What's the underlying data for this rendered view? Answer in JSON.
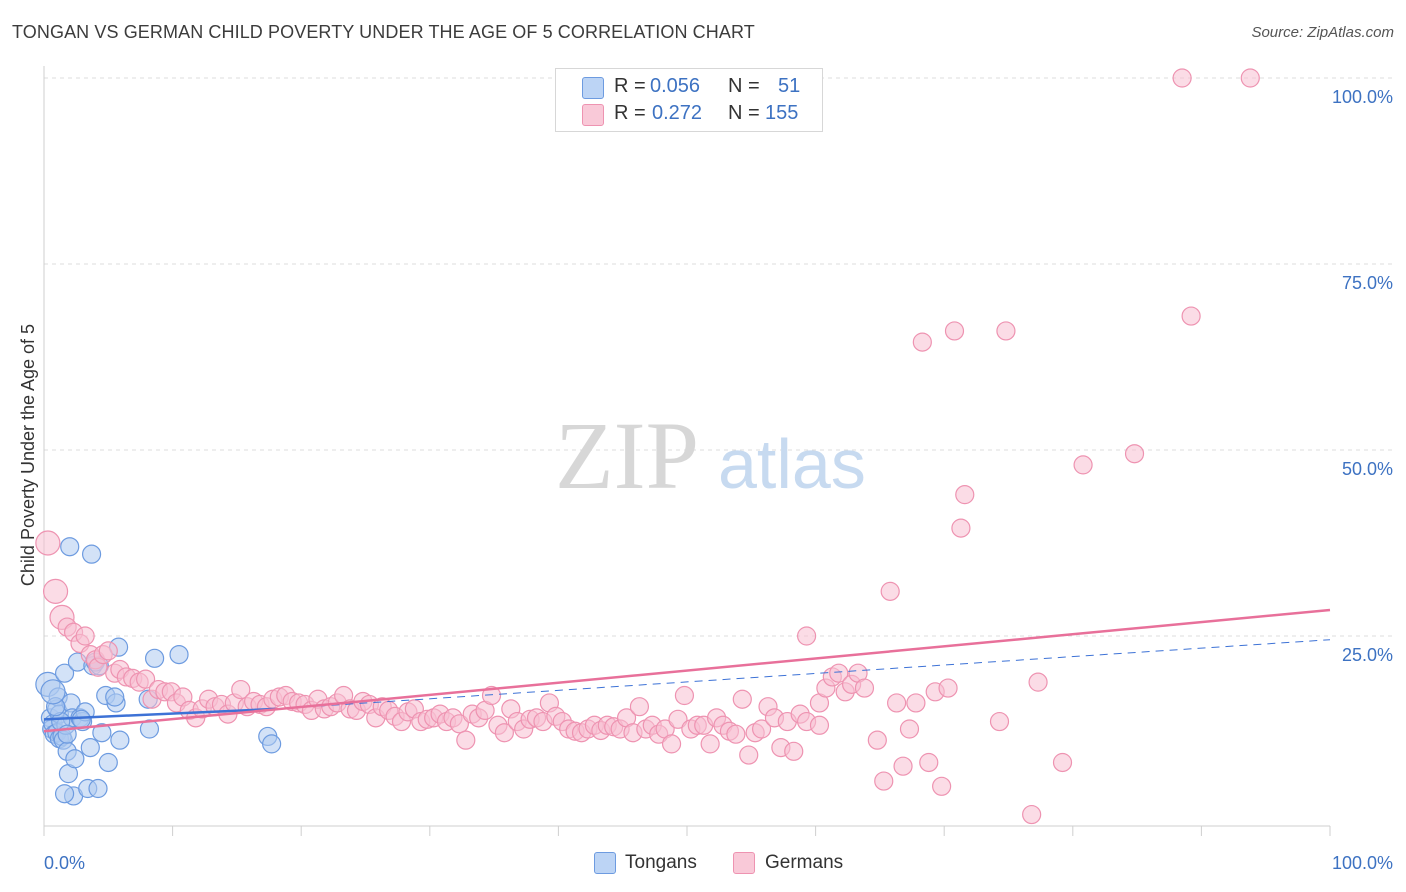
{
  "title": "TONGAN VS GERMAN CHILD POVERTY UNDER THE AGE OF 5 CORRELATION CHART",
  "source": "Source: ZipAtlas.com",
  "watermark": {
    "zip": "ZIP",
    "atlas": "atlas"
  },
  "legend": {
    "r_label": "R =",
    "n_label": "N =",
    "tongans": {
      "r": "0.056",
      "n": "51"
    },
    "germans": {
      "r": "0.272",
      "n": "155"
    }
  },
  "bottom_legend": {
    "tongans": "Tongans",
    "germans": "Germans"
  },
  "colors": {
    "tongans_fill": "#aecbf0",
    "tongans_stroke": "#6d9be0",
    "tongans_line": "#3d72d6",
    "germans_fill": "#f7bfd1",
    "germans_stroke": "#ee93b1",
    "germans_line": "#e8709a",
    "axis_text": "#3d72c2"
  },
  "chart_data": {
    "type": "scatter",
    "title": "TONGAN VS GERMAN CHILD POVERTY UNDER THE AGE OF 5 CORRELATION CHART",
    "xlabel": "",
    "ylabel": "Child Poverty Under the Age of 5",
    "xlim": [
      0,
      100
    ],
    "ylim": [
      0,
      100
    ],
    "x_tick_labels": [
      "0.0%",
      "100.0%"
    ],
    "y_tick_labels": [
      "100.0%",
      "75.0%",
      "50.0%",
      "25.0%"
    ],
    "y_ticks": [
      100,
      75,
      50,
      25
    ],
    "grid": true,
    "legend_position": "top-center",
    "series": [
      {
        "name": "Tongans",
        "points": [
          [
            0.3,
            18.5
          ],
          [
            0.5,
            14
          ],
          [
            0.6,
            12.5
          ],
          [
            0.7,
            13.2
          ],
          [
            0.8,
            11.8
          ],
          [
            1.0,
            15.2
          ],
          [
            1.0,
            12
          ],
          [
            1.1,
            16.8
          ],
          [
            1.2,
            14.5
          ],
          [
            1.2,
            11.2
          ],
          [
            1.4,
            11.5
          ],
          [
            1.5,
            11
          ],
          [
            1.6,
            20
          ],
          [
            1.7,
            13
          ],
          [
            1.8,
            9.5
          ],
          [
            1.9,
            6.5
          ],
          [
            2.0,
            37
          ],
          [
            2.1,
            16
          ],
          [
            2.2,
            14
          ],
          [
            2.3,
            3.5
          ],
          [
            2.4,
            8.5
          ],
          [
            2.6,
            21.5
          ],
          [
            2.8,
            14
          ],
          [
            3.0,
            13.5
          ],
          [
            3.2,
            14.8
          ],
          [
            3.4,
            4.5
          ],
          [
            3.6,
            10
          ],
          [
            3.8,
            21
          ],
          [
            4.0,
            21.5
          ],
          [
            4.2,
            4.5
          ],
          [
            4.5,
            12
          ],
          [
            4.8,
            17
          ],
          [
            5.0,
            8
          ],
          [
            5.6,
            16
          ],
          [
            5.8,
            23.5
          ],
          [
            5.9,
            11
          ],
          [
            8.2,
            12.5
          ],
          [
            8.6,
            22
          ],
          [
            10.5,
            22.5
          ],
          [
            17.4,
            11.5
          ],
          [
            17.7,
            10.5
          ],
          [
            1.6,
            3.8
          ],
          [
            1.3,
            13.5
          ],
          [
            0.9,
            15.5
          ],
          [
            1.8,
            11.8
          ],
          [
            3.7,
            36
          ],
          [
            4.3,
            21
          ],
          [
            8.1,
            16.5
          ],
          [
            2.9,
            13.8
          ],
          [
            5.5,
            16.8
          ],
          [
            0.7,
            17.5
          ]
        ]
      },
      {
        "name": "Germans",
        "points": [
          [
            0.3,
            37.5
          ],
          [
            0.9,
            31
          ],
          [
            1.4,
            27.5
          ],
          [
            1.8,
            26.2
          ],
          [
            2.3,
            25.5
          ],
          [
            2.8,
            24
          ],
          [
            3.2,
            25
          ],
          [
            3.6,
            22.5
          ],
          [
            4.0,
            21.8
          ],
          [
            4.2,
            20.8
          ],
          [
            4.6,
            22.5
          ],
          [
            5.0,
            23
          ],
          [
            5.5,
            20
          ],
          [
            5.9,
            20.5
          ],
          [
            6.4,
            19.5
          ],
          [
            6.9,
            19.3
          ],
          [
            7.4,
            18.8
          ],
          [
            7.9,
            19.2
          ],
          [
            8.4,
            16.5
          ],
          [
            8.9,
            17.8
          ],
          [
            9.4,
            17.5
          ],
          [
            9.9,
            17.5
          ],
          [
            10.3,
            16
          ],
          [
            10.8,
            16.8
          ],
          [
            11.3,
            15
          ],
          [
            11.8,
            14
          ],
          [
            12.3,
            15.2
          ],
          [
            12.8,
            16.5
          ],
          [
            13.3,
            15.5
          ],
          [
            13.8,
            15.8
          ],
          [
            14.3,
            14.5
          ],
          [
            14.8,
            16
          ],
          [
            15.3,
            17.8
          ],
          [
            15.8,
            15.5
          ],
          [
            16.3,
            16.2
          ],
          [
            16.8,
            15.8
          ],
          [
            17.3,
            15.5
          ],
          [
            17.8,
            16.5
          ],
          [
            18.3,
            16.8
          ],
          [
            18.8,
            17
          ],
          [
            19.3,
            16.2
          ],
          [
            19.8,
            16
          ],
          [
            20.3,
            15.8
          ],
          [
            20.8,
            15
          ],
          [
            21.3,
            16.5
          ],
          [
            21.8,
            15.2
          ],
          [
            22.3,
            15.5
          ],
          [
            22.8,
            16
          ],
          [
            23.3,
            17
          ],
          [
            23.8,
            15.2
          ],
          [
            24.3,
            15
          ],
          [
            24.8,
            16.2
          ],
          [
            25.3,
            15.8
          ],
          [
            25.8,
            14
          ],
          [
            26.3,
            15.5
          ],
          [
            26.8,
            15
          ],
          [
            27.3,
            14.2
          ],
          [
            27.8,
            13.5
          ],
          [
            28.3,
            14.8
          ],
          [
            28.8,
            15.2
          ],
          [
            29.3,
            13.5
          ],
          [
            29.8,
            13.8
          ],
          [
            30.3,
            14
          ],
          [
            30.8,
            14.5
          ],
          [
            31.3,
            13.5
          ],
          [
            31.8,
            14
          ],
          [
            32.3,
            13.2
          ],
          [
            32.8,
            11
          ],
          [
            33.3,
            14.5
          ],
          [
            33.8,
            14
          ],
          [
            34.3,
            15
          ],
          [
            34.8,
            17
          ],
          [
            35.3,
            13
          ],
          [
            35.8,
            12
          ],
          [
            36.3,
            15.2
          ],
          [
            36.8,
            13.5
          ],
          [
            37.3,
            12.5
          ],
          [
            37.8,
            13.8
          ],
          [
            38.3,
            14
          ],
          [
            38.8,
            13.5
          ],
          [
            39.3,
            16
          ],
          [
            39.8,
            14.2
          ],
          [
            40.3,
            13.5
          ],
          [
            40.8,
            12.5
          ],
          [
            41.3,
            12.2
          ],
          [
            41.8,
            12
          ],
          [
            42.3,
            12.5
          ],
          [
            42.8,
            13
          ],
          [
            43.3,
            12.3
          ],
          [
            43.8,
            13
          ],
          [
            44.3,
            12.8
          ],
          [
            44.8,
            12.5
          ],
          [
            45.3,
            14
          ],
          [
            45.8,
            12
          ],
          [
            46.3,
            15.5
          ],
          [
            46.8,
            12.5
          ],
          [
            47.3,
            13
          ],
          [
            47.8,
            11.8
          ],
          [
            48.3,
            12.5
          ],
          [
            48.8,
            10.5
          ],
          [
            49.3,
            13.8
          ],
          [
            49.8,
            17
          ],
          [
            50.3,
            12.5
          ],
          [
            50.8,
            13
          ],
          [
            51.3,
            13
          ],
          [
            51.8,
            10.5
          ],
          [
            52.3,
            14
          ],
          [
            52.8,
            13
          ],
          [
            53.3,
            12.2
          ],
          [
            53.8,
            11.8
          ],
          [
            54.3,
            16.5
          ],
          [
            54.8,
            9
          ],
          [
            55.3,
            12
          ],
          [
            55.8,
            12.5
          ],
          [
            56.3,
            15.5
          ],
          [
            56.8,
            14
          ],
          [
            57.3,
            10
          ],
          [
            57.8,
            13.5
          ],
          [
            58.3,
            9.5
          ],
          [
            58.8,
            14.5
          ],
          [
            59.3,
            13.5
          ],
          [
            60.3,
            16
          ],
          [
            60.8,
            18
          ],
          [
            61.3,
            19.5
          ],
          [
            61.8,
            20
          ],
          [
            62.3,
            17.5
          ],
          [
            62.8,
            18.5
          ],
          [
            63.3,
            20
          ],
          [
            63.8,
            18
          ],
          [
            59.3,
            25
          ],
          [
            64.8,
            11
          ],
          [
            65.3,
            5.5
          ],
          [
            65.8,
            31
          ],
          [
            66.3,
            16
          ],
          [
            66.8,
            7.5
          ],
          [
            67.3,
            12.5
          ],
          [
            67.8,
            16
          ],
          [
            68.3,
            64.5
          ],
          [
            68.8,
            8
          ],
          [
            69.3,
            17.5
          ],
          [
            69.8,
            4.8
          ],
          [
            70.3,
            18
          ],
          [
            70.8,
            66
          ],
          [
            71.3,
            39.5
          ],
          [
            71.6,
            44
          ],
          [
            74.8,
            66
          ],
          [
            76.8,
            1
          ],
          [
            77.3,
            18.8
          ],
          [
            79.2,
            8
          ],
          [
            80.8,
            48
          ],
          [
            84.8,
            49.5
          ],
          [
            88.5,
            100
          ],
          [
            89.2,
            68
          ],
          [
            93.8,
            100
          ],
          [
            60.3,
            13
          ],
          [
            74.3,
            13.5
          ]
        ]
      }
    ],
    "trend_lines": [
      {
        "name": "Tongans",
        "x": [
          0,
          18
        ],
        "y": [
          13.8,
          15.2
        ],
        "dashed_extension": {
          "x": [
            18,
            100
          ],
          "y": [
            15.2,
            24.5
          ]
        }
      },
      {
        "name": "Germans",
        "x": [
          0,
          100
        ],
        "y": [
          12.2,
          28.5
        ]
      }
    ]
  }
}
